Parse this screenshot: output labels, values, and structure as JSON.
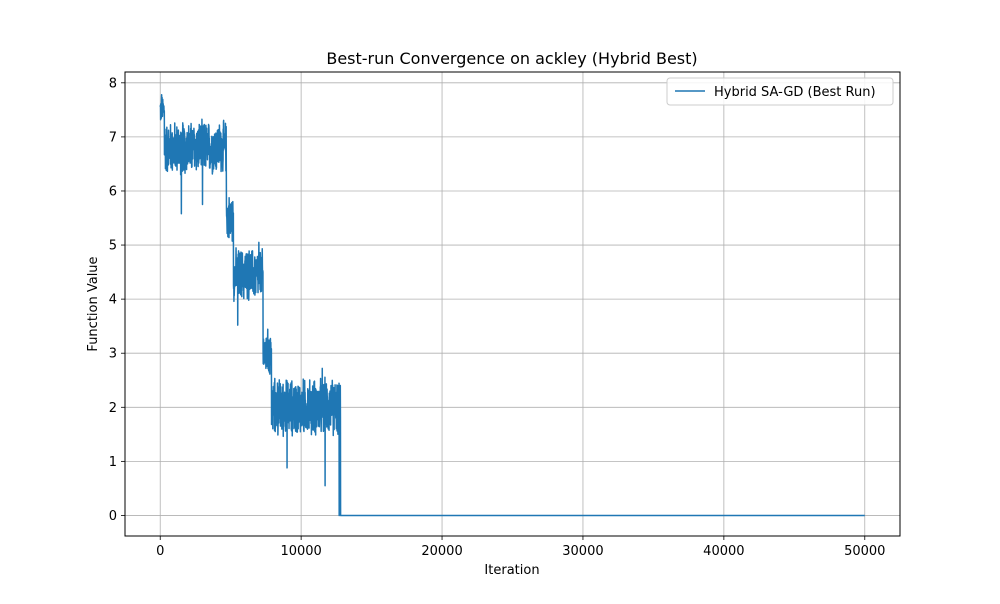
{
  "chart_data": {
    "type": "line",
    "title": "Best-run Convergence on ackley (Hybrid Best)",
    "xlabel": "Iteration",
    "ylabel": "Function Value",
    "xlim": [
      -2500,
      52500
    ],
    "ylim": [
      -0.38,
      8.2
    ],
    "xticks": [
      0,
      10000,
      20000,
      30000,
      40000,
      50000
    ],
    "xtick_labels": [
      "0",
      "10000",
      "20000",
      "30000",
      "40000",
      "50000"
    ],
    "yticks": [
      0,
      1,
      2,
      3,
      4,
      5,
      6,
      7,
      8
    ],
    "ytick_labels": [
      "0",
      "1",
      "2",
      "3",
      "4",
      "5",
      "6",
      "7",
      "8"
    ],
    "grid": true,
    "legend_position": "top-right",
    "series": [
      {
        "name": "Hybrid SA-GD (Best Run)",
        "color": "#1f77b4",
        "phases": [
          {
            "x_start": 0,
            "x_end": 300,
            "center": 7.5,
            "spread": 0.3
          },
          {
            "x_start": 300,
            "x_end": 4700,
            "center": 6.8,
            "spread": 0.55
          },
          {
            "x_start": 4700,
            "x_end": 5200,
            "center": 5.5,
            "spread": 0.5
          },
          {
            "x_start": 5200,
            "x_end": 7300,
            "center": 4.45,
            "spread": 0.55
          },
          {
            "x_start": 7300,
            "x_end": 7900,
            "center": 3.0,
            "spread": 0.5
          },
          {
            "x_start": 7900,
            "x_end": 12800,
            "center": 2.0,
            "spread": 0.6
          },
          {
            "x_start": 12800,
            "x_end": 50000,
            "center": 0.0,
            "spread": 0.0
          }
        ],
        "extremes": [
          {
            "x": 100,
            "y": 7.78
          },
          {
            "x": 1500,
            "y": 5.58
          },
          {
            "x": 3000,
            "y": 5.75
          },
          {
            "x": 5500,
            "y": 3.52
          },
          {
            "x": 7000,
            "y": 5.05
          },
          {
            "x": 9000,
            "y": 0.88
          },
          {
            "x": 11500,
            "y": 2.72
          },
          {
            "x": 11700,
            "y": 0.55
          },
          {
            "x": 12700,
            "y": 0.0
          }
        ]
      }
    ]
  }
}
